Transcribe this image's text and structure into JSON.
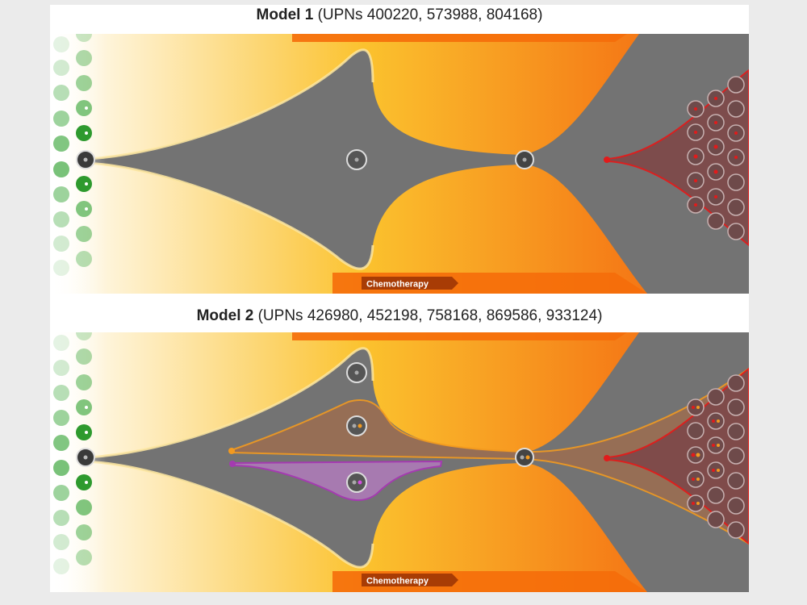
{
  "figure": {
    "models": [
      {
        "name": "Model 1",
        "upns_text": "(UPNs 400220, 573988, 804168)",
        "therapy_label": "Chemotherapy"
      },
      {
        "name": "Model 2",
        "upns_text": "(UPNs 426980, 452198, 758168, 869586, 933124)",
        "therapy_label": "Chemotherapy"
      }
    ],
    "colors": {
      "clone_fill": "#737373",
      "gradient_start": "#ffffff",
      "gradient_mid": "#fbc22e",
      "gradient_end": "#f46a0a",
      "border_light": "#fde6a0",
      "founder_red": "#e11b1b",
      "subclone_orange": "#f39a1f",
      "subclone_purple": "#a43bb0",
      "cell_green": "#4cae4c"
    }
  }
}
